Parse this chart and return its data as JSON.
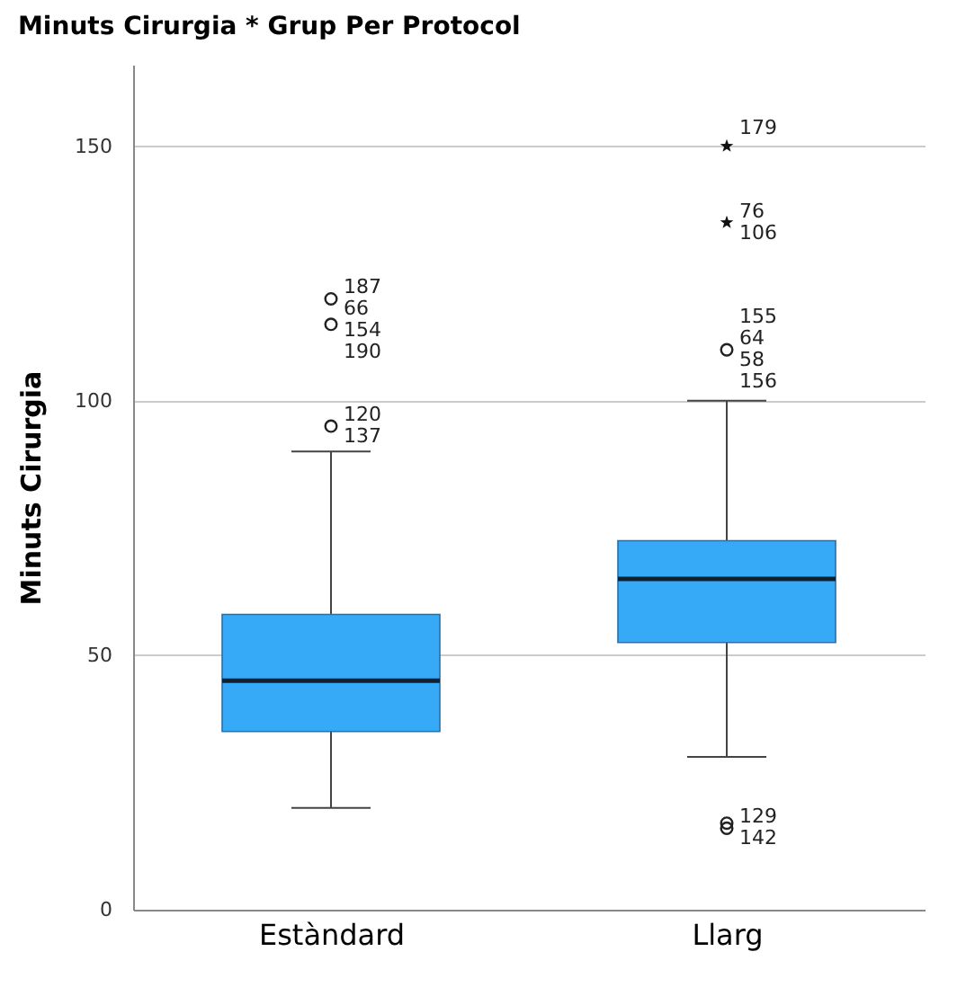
{
  "chart_data": {
    "type": "box",
    "title": "Minuts Cirurgia * Grup Per Protocol",
    "ylabel": "Minuts Cirurgia",
    "categories": [
      "Estàndard",
      "Llarg"
    ],
    "boxes": [
      {
        "low": 20,
        "q1": 35,
        "median": 45,
        "q3": 58,
        "high": 90
      },
      {
        "low": 30,
        "q1": 52.5,
        "median": 65,
        "q3": 72.5,
        "high": 100
      }
    ],
    "color": "#36aaf6",
    "series": [
      {
        "type": "scatter",
        "marker": "circle",
        "color": "#222222",
        "x": [
          "Estàndard",
          "Estàndard",
          "Estàndard",
          "Llarg",
          "Llarg",
          "Llarg"
        ],
        "values": [
          95,
          115,
          120,
          110,
          16,
          17
        ]
      },
      {
        "type": "scatter",
        "marker": "star",
        "color": "#111111",
        "x": [
          "Llarg",
          "Llarg"
        ],
        "values": [
          150,
          135
        ]
      }
    ],
    "annotations": [
      {
        "text": "187",
        "x": "Estàndard",
        "y": 120
      },
      {
        "text": "66",
        "x": "Estàndard",
        "y": 120
      },
      {
        "text": "154",
        "x": "Estàndard",
        "y": 115
      },
      {
        "text": "190",
        "x": "Estàndard",
        "y": 115
      },
      {
        "text": "120",
        "x": "Estàndard",
        "y": 95
      },
      {
        "text": "137",
        "x": "Estàndard",
        "y": 95
      },
      {
        "text": "179",
        "x": "Llarg",
        "y": 150
      },
      {
        "text": "76",
        "x": "Llarg",
        "y": 135
      },
      {
        "text": "106",
        "x": "Llarg",
        "y": 135
      },
      {
        "text": "155",
        "x": "Llarg",
        "y": 110
      },
      {
        "text": "64",
        "x": "Llarg",
        "y": 110
      },
      {
        "text": "58",
        "x": "Llarg",
        "y": 110
      },
      {
        "text": "156",
        "x": "Llarg",
        "y": 110
      },
      {
        "text": "129",
        "x": "Llarg",
        "y": 16
      },
      {
        "text": "142",
        "x": "Llarg",
        "y": 16
      }
    ],
    "ylim": [
      0,
      166
    ],
    "yticks": [
      0,
      50,
      100,
      150
    ],
    "grid": "y"
  }
}
